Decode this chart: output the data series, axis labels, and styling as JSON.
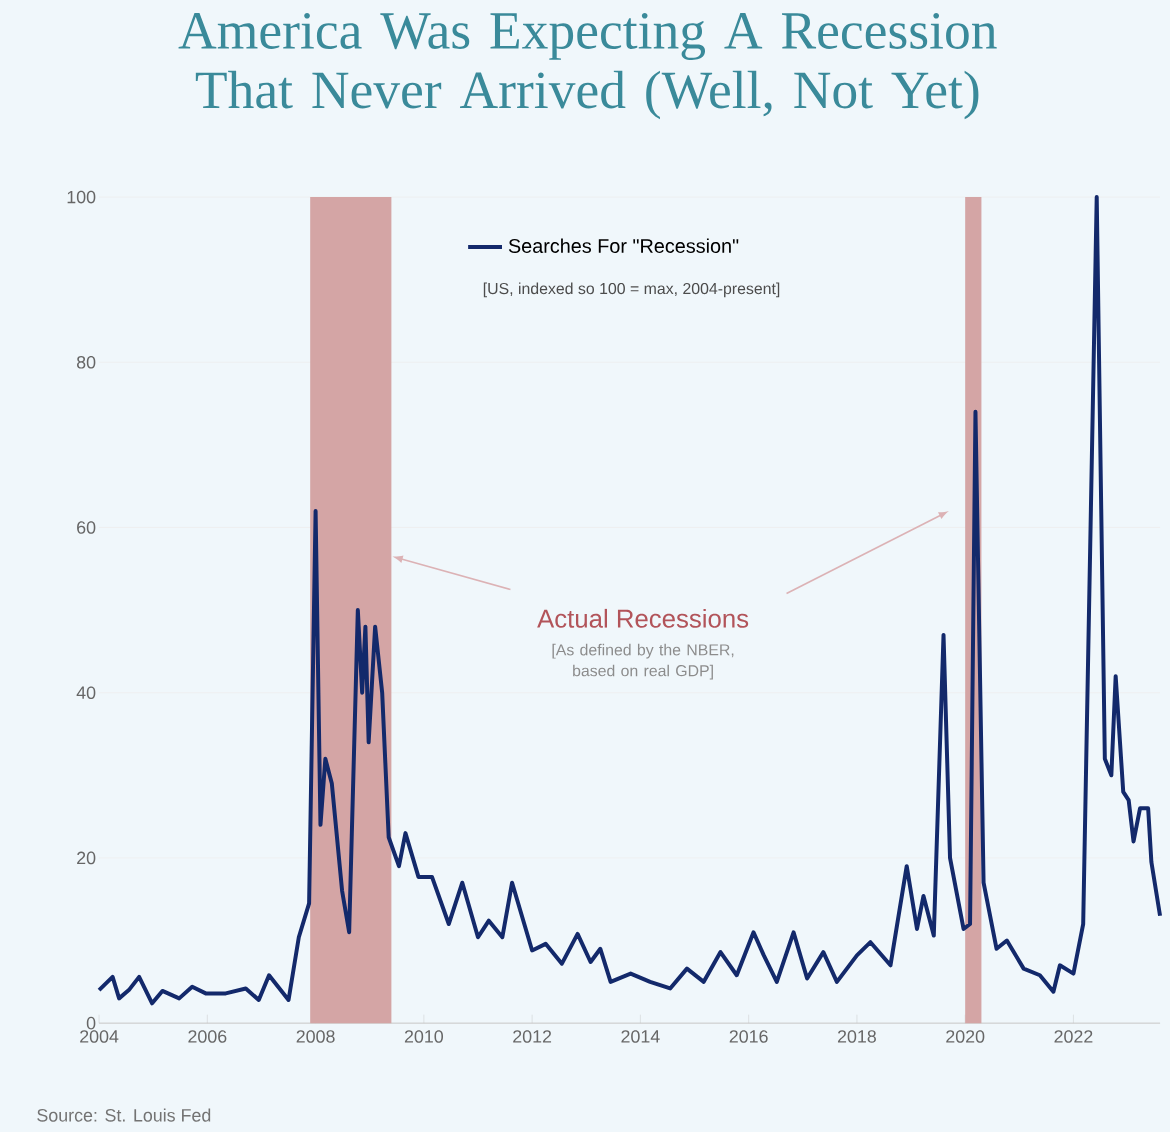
{
  "chart_data": {
    "type": "line",
    "title": "America Was Expecting A Recession That Never Arrived (Well, Not Yet)",
    "x": [
      2004.0,
      2004.25,
      2004.37,
      2004.55,
      2004.74,
      2004.98,
      2005.17,
      2005.48,
      2005.72,
      2005.97,
      2006.34,
      2006.71,
      2006.95,
      2007.14,
      2007.5,
      2007.69,
      2007.88,
      2008.0,
      2008.09,
      2008.18,
      2008.3,
      2008.49,
      2008.62,
      2008.78,
      2008.86,
      2008.92,
      2008.98,
      2009.1,
      2009.23,
      2009.35,
      2009.54,
      2009.66,
      2009.9,
      2010.15,
      2010.46,
      2010.71,
      2011.0,
      2011.2,
      2011.45,
      2011.63,
      2012.0,
      2012.25,
      2012.55,
      2012.84,
      2013.08,
      2013.26,
      2013.45,
      2013.82,
      2014.18,
      2014.55,
      2014.86,
      2015.17,
      2015.48,
      2015.78,
      2016.09,
      2016.28,
      2016.52,
      2016.83,
      2017.08,
      2017.38,
      2017.63,
      2018.0,
      2018.25,
      2018.62,
      2018.74,
      2018.92,
      2019.11,
      2019.23,
      2019.42,
      2019.6,
      2019.72,
      2019.97,
      2020.09,
      2020.19,
      2020.34,
      2020.58,
      2020.77,
      2021.08,
      2021.38,
      2021.63,
      2021.75,
      2022.0,
      2022.18,
      2022.43,
      2022.58,
      2022.7,
      2022.78,
      2022.92,
      2023.02,
      2023.11,
      2023.23,
      2023.38,
      2023.44,
      2023.6
    ],
    "series": [
      {
        "name": "Searches For \"Recession\"",
        "color": "#13296b",
        "values": [
          4,
          5.6,
          3,
          4,
          5.6,
          2.4,
          3.9,
          3,
          4.4,
          3.6,
          3.6,
          4.2,
          2.8,
          5.8,
          2.8,
          10.4,
          14.5,
          62,
          24,
          32,
          29,
          16,
          11,
          50,
          40,
          48,
          34,
          48,
          40,
          22.5,
          19,
          23,
          17.7,
          17.7,
          12,
          17,
          10.4,
          12.4,
          10.4,
          17,
          8.8,
          9.6,
          7.2,
          10.8,
          7.4,
          9,
          5,
          6,
          5,
          4.2,
          6.6,
          5,
          8.6,
          5.8,
          11,
          8.2,
          5,
          11,
          5.4,
          8.6,
          5,
          8.2,
          9.8,
          7,
          11.8,
          19,
          11.4,
          15.4,
          10.6,
          47,
          20,
          11.4,
          12,
          74,
          17,
          9,
          10,
          6.6,
          5.8,
          3.8,
          7,
          6,
          12,
          100,
          32,
          30,
          42,
          28,
          27,
          22,
          26,
          26,
          19.5,
          13
        ]
      }
    ],
    "xlim": [
      2004,
      2023.6
    ],
    "xticks": [
      2004,
      2006,
      2008,
      2010,
      2012,
      2014,
      2016,
      2018,
      2020,
      2022
    ],
    "ylim": [
      0,
      100
    ],
    "yticks": [
      0,
      20,
      40,
      60,
      80,
      100
    ],
    "grid": "y",
    "legend": "top",
    "bands": [
      {
        "axis": "x",
        "from": 2007.9,
        "to": 2009.4,
        "label": "Actual Recessions",
        "color": "#d4a5a5"
      },
      {
        "axis": "x",
        "from": 2020.0,
        "to": 2020.3,
        "color": "#d4a5a5"
      }
    ],
    "annotations": [
      "[US, indexed so 100 = max, 2004-present]",
      "[As defined by the NBER, based on real GDP]",
      "Source: St. Louis Fed"
    ]
  }
}
